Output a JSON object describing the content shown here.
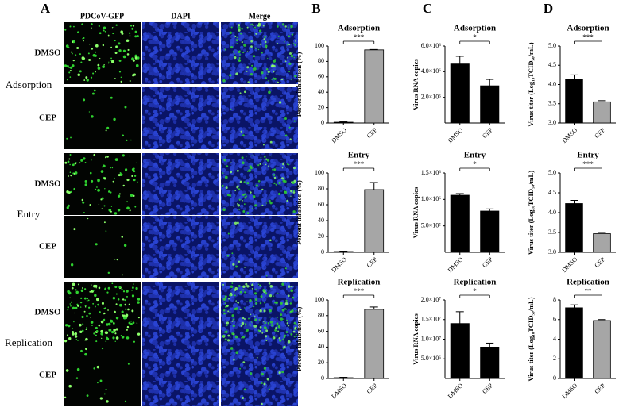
{
  "figure": {
    "panel_labels": [
      "A",
      "B",
      "C",
      "D"
    ],
    "columns": [
      "PDCoV-GFP",
      "DAPI",
      "Merge"
    ],
    "groups": [
      "Adsorption",
      "Entry",
      "Replication"
    ],
    "treatments": [
      "DMSO",
      "CEP"
    ]
  },
  "chart_data": [
    {
      "type": "bar",
      "title": "Adsorption",
      "ylabel": "Percent inhibition (%)",
      "categories": [
        "DMSO",
        "CEP"
      ],
      "values": [
        1,
        95
      ],
      "errors": [
        0.5,
        0.5
      ],
      "colors": [
        "#000000",
        "#a6a6a6"
      ],
      "ylim": [
        0,
        100
      ],
      "yticks": [
        0,
        20,
        40,
        60,
        80,
        100
      ],
      "significance": "***"
    },
    {
      "type": "bar",
      "title": "Entry",
      "ylabel": "Percent inhibition (%)",
      "categories": [
        "DMSO",
        "CEP"
      ],
      "values": [
        1,
        79
      ],
      "errors": [
        0.5,
        9
      ],
      "colors": [
        "#000000",
        "#a6a6a6"
      ],
      "ylim": [
        0,
        100
      ],
      "yticks": [
        0,
        20,
        40,
        60,
        80,
        100
      ],
      "significance": "***"
    },
    {
      "type": "bar",
      "title": "Replication",
      "ylabel": "Percent inhibition (%)",
      "categories": [
        "DMSO",
        "CEP"
      ],
      "values": [
        1,
        88
      ],
      "errors": [
        0.5,
        3
      ],
      "colors": [
        "#000000",
        "#a6a6a6"
      ],
      "ylim": [
        0,
        100
      ],
      "yticks": [
        0,
        20,
        40,
        60,
        80,
        100
      ],
      "significance": "***"
    },
    {
      "type": "bar",
      "title": "Adsorption",
      "ylabel": "Virus RNA copies",
      "categories": [
        "DMSO",
        "CEP"
      ],
      "values": [
        4600000,
        2900000
      ],
      "errors": [
        600000,
        500000
      ],
      "colors": [
        "#000000",
        "#000000"
      ],
      "ylim": [
        0,
        6000000
      ],
      "yticks": [
        {
          "value": 2000000,
          "label": "2.0×10⁶"
        },
        {
          "value": 4000000,
          "label": "4.0×10⁶"
        },
        {
          "value": 6000000,
          "label": "6.0×10⁶"
        }
      ],
      "significance": "*"
    },
    {
      "type": "bar",
      "title": "Entry",
      "ylabel": "Virus RNA copies",
      "categories": [
        "DMSO",
        "CEP"
      ],
      "values": [
        1080000,
        780000
      ],
      "errors": [
        30000,
        40000
      ],
      "colors": [
        "#000000",
        "#000000"
      ],
      "ylim": [
        0,
        1500000
      ],
      "yticks": [
        {
          "value": 500000,
          "label": "5.0×10⁵"
        },
        {
          "value": 1000000,
          "label": "1.0×10⁶"
        },
        {
          "value": 1500000,
          "label": "1.5×10⁶"
        }
      ],
      "significance": "*"
    },
    {
      "type": "bar",
      "title": "Replication",
      "ylabel": "Virus RNA copies",
      "categories": [
        "DMSO",
        "CEP"
      ],
      "values": [
        14000000,
        8000000
      ],
      "errors": [
        3000000,
        1000000
      ],
      "colors": [
        "#000000",
        "#000000"
      ],
      "ylim": [
        0,
        20000000
      ],
      "yticks": [
        {
          "value": 5000000,
          "label": "5.0×10⁶"
        },
        {
          "value": 10000000,
          "label": "1.0×10⁷"
        },
        {
          "value": 15000000,
          "label": "1.5×10⁷"
        },
        {
          "value": 20000000,
          "label": "2.0×10⁷"
        }
      ],
      "significance": "*"
    },
    {
      "type": "bar",
      "title": "Adsorption",
      "ylabel": "Virus titer (Log₁₀TCID₅₀/mL)",
      "categories": [
        "DMSO",
        "CEP"
      ],
      "values": [
        4.13,
        3.55
      ],
      "errors": [
        0.12,
        0.03
      ],
      "colors": [
        "#000000",
        "#a6a6a6"
      ],
      "ylim": [
        3,
        5
      ],
      "yticks": [
        {
          "value": 3,
          "label": "3.0"
        },
        3.5,
        {
          "value": 4,
          "label": "4.0"
        },
        4.5,
        {
          "value": 5,
          "label": "5.0"
        }
      ],
      "significance": "***"
    },
    {
      "type": "bar",
      "title": "Entry",
      "ylabel": "Virus titer (Log₁₀TCID₅₀/mL)",
      "categories": [
        "DMSO",
        "CEP"
      ],
      "values": [
        4.23,
        3.47
      ],
      "errors": [
        0.08,
        0.03
      ],
      "colors": [
        "#000000",
        "#a6a6a6"
      ],
      "ylim": [
        3,
        5
      ],
      "yticks": [
        {
          "value": 3,
          "label": "3.0"
        },
        3.5,
        {
          "value": 4,
          "label": "4.0"
        },
        4.5,
        {
          "value": 5,
          "label": "5.0"
        }
      ],
      "significance": "***"
    },
    {
      "type": "bar",
      "title": "Replication",
      "ylabel": "Virus titer (Log₁₀TCID₅₀/mL)",
      "categories": [
        "DMSO",
        "CEP"
      ],
      "values": [
        7.2,
        5.9
      ],
      "errors": [
        0.3,
        0.1
      ],
      "colors": [
        "#000000",
        "#a6a6a6"
      ],
      "ylim": [
        0,
        8
      ],
      "yticks": [
        0,
        2,
        4,
        6,
        8
      ],
      "significance": "**"
    }
  ]
}
